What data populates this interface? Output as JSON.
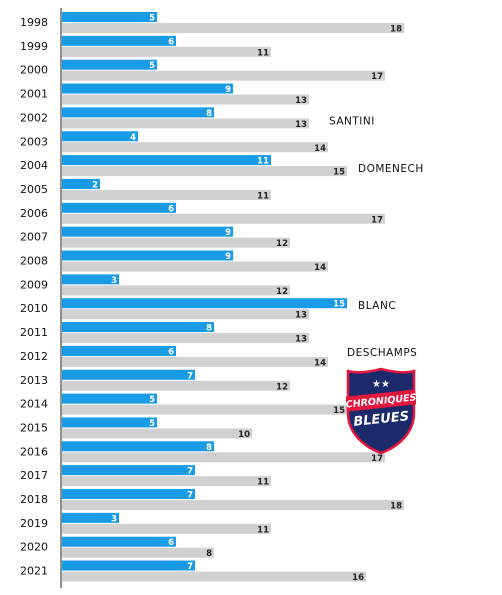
{
  "chart_data": {
    "type": "bar",
    "orientation": "horizontal",
    "categories": [
      "1998",
      "1999",
      "2000",
      "2001",
      "2002",
      "2003",
      "2004",
      "2005",
      "2006",
      "2007",
      "2008",
      "2009",
      "2010",
      "2011",
      "2012",
      "2013",
      "2014",
      "2015",
      "2016",
      "2017",
      "2018",
      "2019",
      "2020",
      "2021"
    ],
    "series": [
      {
        "color": "#1a9be6",
        "values": [
          5,
          6,
          5,
          9,
          8,
          4,
          11,
          2,
          6,
          9,
          9,
          3,
          15,
          8,
          6,
          7,
          5,
          5,
          8,
          7,
          7,
          3,
          6,
          7
        ]
      },
      {
        "color": "#d1d1d1",
        "values": [
          18,
          11,
          17,
          13,
          13,
          14,
          15,
          11,
          17,
          12,
          14,
          12,
          13,
          13,
          14,
          12,
          15,
          10,
          17,
          11,
          18,
          11,
          8,
          16
        ]
      }
    ],
    "xlim": [
      0,
      20
    ],
    "grid": false,
    "legend": "none",
    "annotations": [
      {
        "text": "SANTINI",
        "category": "2002"
      },
      {
        "text": "DOMENECH",
        "category": "2004"
      },
      {
        "text": "BLANC",
        "category": "2010"
      },
      {
        "text": "DESCHAMPS",
        "category": "2012"
      }
    ]
  },
  "logo": {
    "line1": "CHRONIQUES",
    "line2": "BLEUES",
    "stars": "★★",
    "colors": {
      "navy": "#1b2a6b",
      "red": "#e3173e",
      "white": "#ffffff"
    }
  }
}
